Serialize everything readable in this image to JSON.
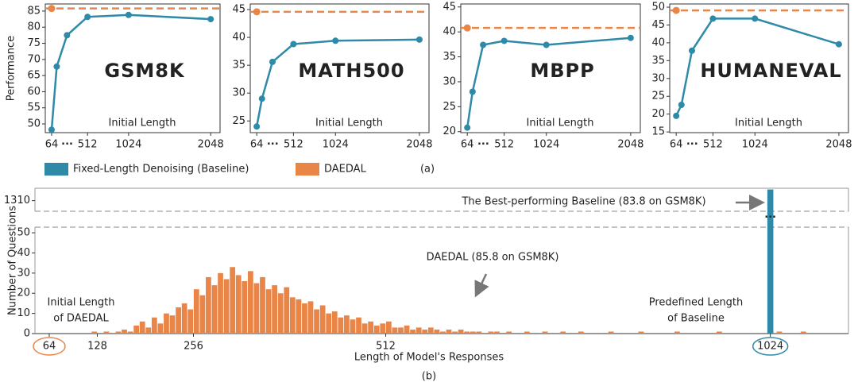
{
  "legend": [
    {
      "name": "Fixed-Length Denoising (Baseline)",
      "color": "#2f8aa8"
    },
    {
      "name": "DAEDAL",
      "color": "#ea8548"
    }
  ],
  "panel_labels": [
    "(a)",
    "(b)"
  ],
  "chart_data": [
    {
      "type": "line",
      "title": "GSM8K",
      "ylabel": "Performance",
      "xlabel": "Initial Length",
      "x": [
        64,
        128,
        256,
        512,
        1024,
        2048
      ],
      "values": [
        48.2,
        67.8,
        77.5,
        83.2,
        83.8,
        82.5
      ],
      "reference_line": 85.8,
      "xlim": [
        -15,
        2165
      ],
      "xticks": [
        64,
        512,
        1024,
        2048
      ],
      "x_break_label": "···",
      "ylim": [
        47.3,
        87.2
      ],
      "yticks": [
        50,
        55,
        60,
        65,
        70,
        75,
        80,
        85
      ]
    },
    {
      "type": "line",
      "title": "MATH500",
      "xlabel": "Initial Length",
      "x": [
        64,
        128,
        256,
        512,
        1024,
        2048
      ],
      "values": [
        24.0,
        29.0,
        35.6,
        38.8,
        39.4,
        39.6
      ],
      "reference_line": 44.6,
      "xlim": [
        -15,
        2165
      ],
      "xticks": [
        64,
        512,
        1024,
        2048
      ],
      "x_break_label": "···",
      "ylim": [
        22.9,
        46
      ],
      "yticks": [
        25,
        30,
        35,
        40,
        45
      ]
    },
    {
      "type": "line",
      "title": "MBPP",
      "xlabel": "Initial Length",
      "x": [
        64,
        128,
        256,
        512,
        1024,
        2048
      ],
      "values": [
        20.8,
        28.0,
        37.4,
        38.2,
        37.4,
        38.8
      ],
      "reference_line": 40.8,
      "xlim": [
        -15,
        2165
      ],
      "xticks": [
        64,
        512,
        1024,
        2048
      ],
      "x_break_label": "···",
      "ylim": [
        19.8,
        45.6
      ],
      "yticks": [
        20,
        25,
        30,
        35,
        40,
        45
      ]
    },
    {
      "type": "line",
      "title": "HUMANEVAL",
      "xlabel": "Initial Length",
      "x": [
        64,
        128,
        256,
        512,
        1024,
        2048
      ],
      "values": [
        19.5,
        22.6,
        37.8,
        46.8,
        46.8,
        39.6
      ],
      "reference_line": 49.1,
      "xlim": [
        -15,
        2165
      ],
      "xticks": [
        64,
        512,
        1024,
        2048
      ],
      "x_break_label": "···",
      "ylim": [
        14.8,
        50.9
      ],
      "yticks": [
        15,
        20,
        25,
        30,
        35,
        40,
        45,
        50
      ]
    },
    {
      "type": "histogram",
      "ylabel": "Number of Questions",
      "xlabel": "Length of Model's Responses",
      "bins": [
        64,
        72,
        80,
        88,
        96,
        104,
        112,
        120,
        128,
        136,
        144,
        152,
        160,
        168,
        176,
        184,
        192,
        200,
        208,
        216,
        224,
        232,
        240,
        248,
        256,
        264,
        272,
        280,
        288,
        296,
        304,
        312,
        320,
        328,
        336,
        344,
        352,
        360,
        368,
        376,
        384,
        392,
        400,
        408,
        416,
        424,
        432,
        440,
        448,
        456,
        464,
        472,
        480,
        488,
        496,
        504,
        512,
        520,
        528,
        536,
        544,
        552,
        560,
        568,
        576,
        584,
        592,
        600,
        608,
        616,
        624,
        632,
        640,
        648,
        656,
        664,
        672,
        680,
        688,
        696,
        704,
        712,
        720,
        728,
        736,
        744,
        752,
        760,
        768,
        776,
        784,
        792,
        800,
        808,
        816,
        824,
        832,
        840,
        848,
        856,
        864,
        872,
        880,
        888,
        896,
        904,
        912,
        920,
        928,
        936,
        944,
        952,
        960,
        968,
        976,
        984,
        992,
        1000,
        1008,
        1016,
        1024,
        1032,
        1040,
        1048,
        1056,
        1064,
        1072,
        1080,
        1088
      ],
      "counts": [
        0,
        0,
        0,
        0,
        0,
        0,
        0,
        1,
        0,
        1,
        0,
        1,
        2,
        1,
        4,
        6,
        3,
        8,
        5,
        10,
        9,
        13,
        15,
        12,
        22,
        19,
        28,
        24,
        30,
        27,
        33,
        29,
        26,
        31,
        25,
        28,
        22,
        24,
        20,
        23,
        18,
        17,
        15,
        16,
        12,
        14,
        10,
        11,
        8,
        9,
        7,
        8,
        5,
        6,
        4,
        5,
        6,
        3,
        3,
        4,
        2,
        3,
        2,
        3,
        2,
        1,
        2,
        1,
        2,
        1,
        1,
        1,
        0,
        1,
        1,
        0,
        1,
        0,
        0,
        1,
        0,
        0,
        1,
        0,
        0,
        1,
        0,
        0,
        1,
        0,
        0,
        0,
        0,
        1,
        0,
        0,
        0,
        0,
        1,
        0,
        0,
        0,
        0,
        0,
        1,
        0,
        0,
        0,
        0,
        0,
        0,
        1,
        0,
        0,
        0,
        0,
        0,
        0,
        0,
        0,
        0,
        1,
        0,
        0,
        0,
        1,
        0,
        0
      ],
      "baseline_bins": [
        1020,
        1028
      ],
      "baseline_count": 1319,
      "xlim": [
        45,
        1128
      ],
      "xticks": [
        64,
        128,
        256,
        512,
        1024
      ],
      "ylim": [
        0,
        52.8
      ],
      "yticks": [
        0,
        10,
        20,
        30,
        40,
        50
      ],
      "ylim_top": [
        1304,
        1320
      ],
      "yticks_top": [
        1310
      ],
      "annotations": {
        "baseline_best": "The Best-performing Baseline (83.8 on GSM8K)",
        "break_dots": "···",
        "daedal_best": "DAEDAL (85.8 on GSM8K)",
        "daedal_initial": [
          "Initial Length",
          "of DAEDAL"
        ],
        "baseline_length": [
          "Predefined Length",
          "of Baseline"
        ]
      }
    }
  ]
}
